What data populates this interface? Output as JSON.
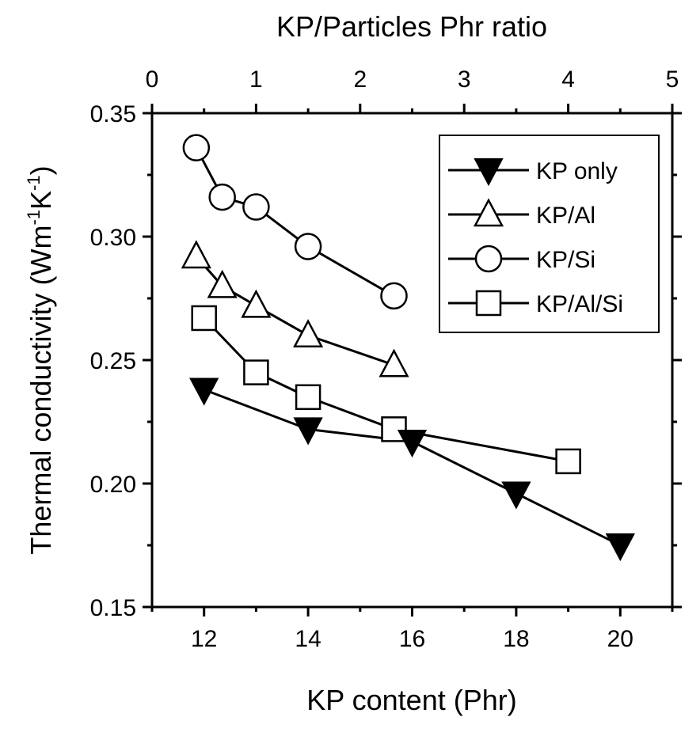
{
  "chart_data": {
    "type": "scatter",
    "xlabel": "KP content (Phr)",
    "x2label": "KP/Particles Phr ratio",
    "ylabel": "Thermal conductivity (Wm",
    "ylabel_sup1": "-1",
    "ylabel_mid": "K",
    "ylabel_sup2": "-1",
    "ylabel_end": ")",
    "xlim": [
      11,
      21
    ],
    "x2lim": [
      0,
      5
    ],
    "ylim": [
      0.15,
      0.35
    ],
    "xticks": [
      "12",
      "14",
      "16",
      "18",
      "20"
    ],
    "x2ticks": [
      "0",
      "1",
      "2",
      "3",
      "4",
      "5"
    ],
    "yticks": [
      "0.15",
      "0.20",
      "0.25",
      "0.30",
      "0.35"
    ],
    "legend_position": "top-right",
    "series": [
      {
        "name": "KP only",
        "marker": "triangle-down-filled",
        "points": [
          [
            12,
            0.238
          ],
          [
            14,
            0.222
          ],
          [
            16,
            0.217
          ],
          [
            18,
            0.196
          ],
          [
            20,
            0.175
          ]
        ]
      },
      {
        "name": "KP/Al",
        "marker": "triangle-up-open",
        "points": [
          [
            11.85,
            0.292
          ],
          [
            12.35,
            0.28
          ],
          [
            13.0,
            0.272
          ],
          [
            14.0,
            0.26
          ],
          [
            15.65,
            0.248
          ]
        ]
      },
      {
        "name": "KP/Si",
        "marker": "circle-open",
        "points": [
          [
            11.85,
            0.336
          ],
          [
            12.35,
            0.316
          ],
          [
            13.0,
            0.312
          ],
          [
            14.0,
            0.296
          ],
          [
            15.65,
            0.276
          ]
        ]
      },
      {
        "name": "KP/Al/Si",
        "marker": "square-open",
        "points": [
          [
            12.0,
            0.267
          ],
          [
            13.0,
            0.245
          ],
          [
            14.0,
            0.235
          ],
          [
            15.65,
            0.222
          ],
          [
            19.0,
            0.209
          ]
        ]
      }
    ]
  }
}
